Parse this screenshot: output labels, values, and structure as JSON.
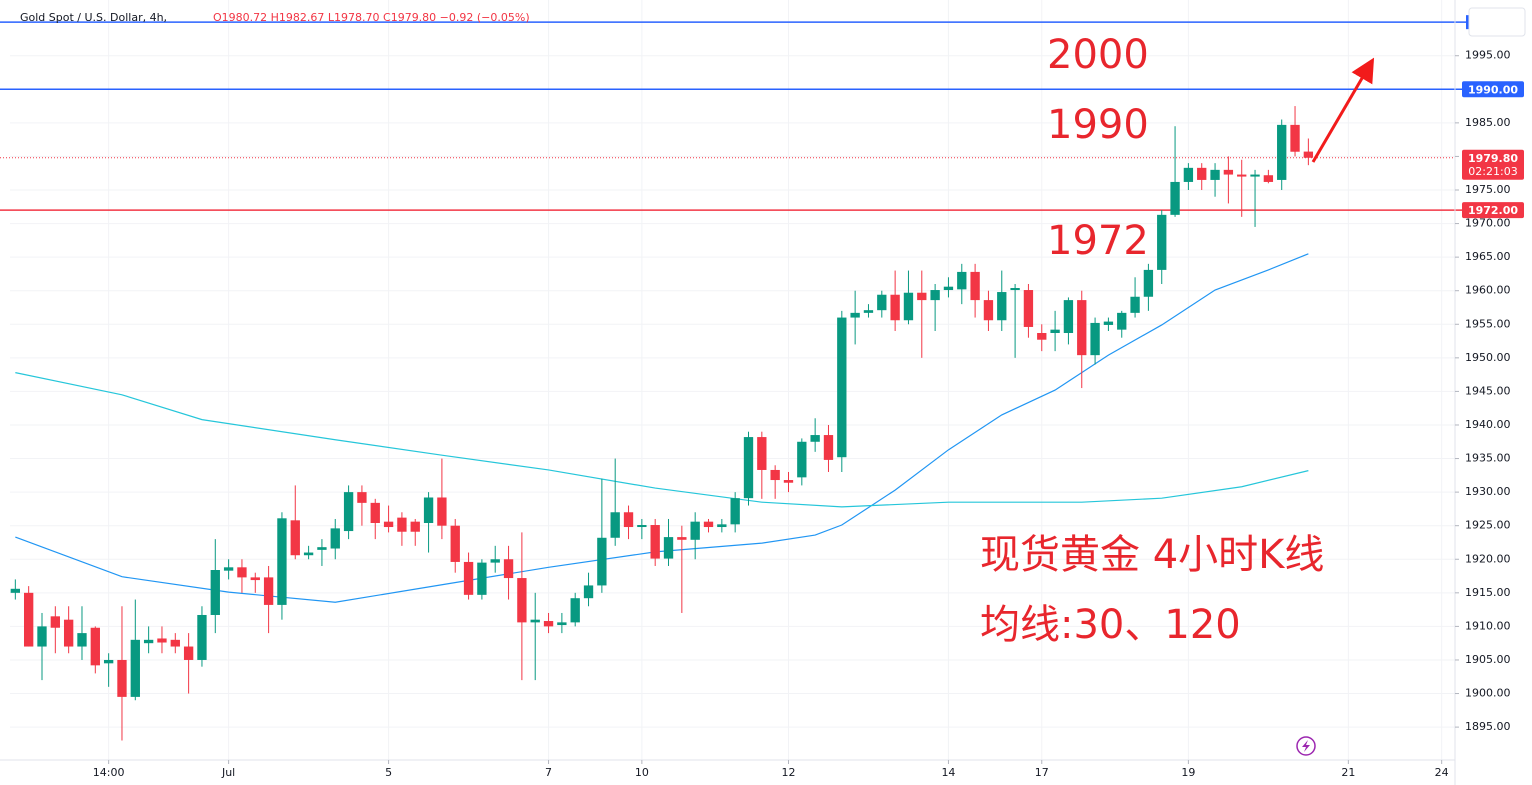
{
  "chart_data": {
    "type": "candlestick",
    "title": "Gold Spot / U.S. Dollar, 4h,",
    "ohlc_legend": "O1980.72 H1982.67 L1978.70 C1979.80 −0.92 (−0.05%)",
    "annotations": [
      "2000",
      "1990",
      "1972",
      "现货黄金 4小时K线",
      "均线:30、120"
    ],
    "up_color": "#089981",
    "down_color": "#f23645",
    "grid": true,
    "xlim": [
      -0.4,
      108
    ],
    "ylim": [
      1890.1,
      2003.3
    ],
    "xticks": [
      {
        "value": 7,
        "label": "14:00"
      },
      {
        "value": 16,
        "label": "Jul"
      },
      {
        "value": 28,
        "label": "5"
      },
      {
        "value": 40,
        "label": "7"
      },
      {
        "value": 47,
        "label": "10"
      },
      {
        "value": 58,
        "label": "12"
      },
      {
        "value": 70,
        "label": "14"
      },
      {
        "value": 77,
        "label": "17"
      },
      {
        "value": 88,
        "label": "19"
      },
      {
        "value": 100,
        "label": "21"
      },
      {
        "value": 107,
        "label": "24"
      }
    ],
    "yticks": [
      {
        "value": 1895,
        "label": "1895.00"
      },
      {
        "value": 1900,
        "label": "1900.00"
      },
      {
        "value": 1905,
        "label": "1905.00"
      },
      {
        "value": 1910,
        "label": "1910.00"
      },
      {
        "value": 1915,
        "label": "1915.00"
      },
      {
        "value": 1920,
        "label": "1920.00"
      },
      {
        "value": 1925,
        "label": "1925.00"
      },
      {
        "value": 1930,
        "label": "1930.00"
      },
      {
        "value": 1935,
        "label": "1935.00"
      },
      {
        "value": 1940,
        "label": "1940.00"
      },
      {
        "value": 1945,
        "label": "1945.00"
      },
      {
        "value": 1950,
        "label": "1950.00"
      },
      {
        "value": 1955,
        "label": "1955.00"
      },
      {
        "value": 1960,
        "label": "1960.00"
      },
      {
        "value": 1965,
        "label": "1965.00"
      },
      {
        "value": 1970,
        "label": "1970.00"
      },
      {
        "value": 1975,
        "label": "1975.00"
      },
      {
        "value": 1980,
        "label": "1980.00"
      },
      {
        "value": 1985,
        "label": "1985.00"
      },
      {
        "value": 1995,
        "label": "1995.00"
      }
    ],
    "levels": [
      {
        "value": 2000,
        "color": "#2962ff"
      },
      {
        "value": 1990,
        "label": "1990.00",
        "color": "#2962ff"
      },
      {
        "value": 1972,
        "label": "1972.00",
        "color": "#f23645"
      }
    ],
    "last_price": {
      "value": 1979.8,
      "label": "1979.80",
      "countdown": "02:21:03",
      "color": "#f23645"
    },
    "candles": {
      "x": [
        0,
        1,
        2,
        3,
        4,
        5,
        6,
        7,
        8,
        9,
        10,
        11,
        12,
        13,
        14,
        15,
        16,
        17,
        18,
        19,
        20,
        21,
        22,
        23,
        24,
        25,
        26,
        27,
        28,
        29,
        30,
        31,
        32,
        33,
        34,
        35,
        36,
        37,
        38,
        39,
        40,
        41,
        42,
        43,
        44,
        45,
        46,
        47,
        48,
        49,
        50,
        51,
        52,
        53,
        54,
        55,
        56,
        57,
        58,
        59,
        60,
        61,
        62,
        63,
        64,
        65,
        66,
        67,
        68,
        69,
        70,
        71,
        72,
        73,
        74,
        75,
        76,
        77,
        78,
        79,
        80,
        81,
        82,
        83,
        84,
        85,
        86,
        87,
        88,
        89,
        90,
        91,
        92,
        93,
        94,
        95,
        96,
        97
      ],
      "open": [
        1915,
        1915,
        1907,
        1911.5,
        1911,
        1907,
        1909.8,
        1904.5,
        1905,
        1899.5,
        1907.5,
        1908.2,
        1908,
        1907,
        1905,
        1911.7,
        1918.3,
        1918.8,
        1917.3,
        1917.3,
        1913.2,
        1925.8,
        1920.6,
        1921.4,
        1921.6,
        1924.2,
        1930,
        1928.4,
        1925.6,
        1926.2,
        1925.6,
        1925.4,
        1929.2,
        1925,
        1919.6,
        1914.7,
        1919.5,
        1920,
        1917.2,
        1910.6,
        1910.8,
        1910.2,
        1910.6,
        1914.2,
        1916.1,
        1923.2,
        1927,
        1924.8,
        1925.1,
        1920.1,
        1923.3,
        1922.9,
        1925.6,
        1924.8,
        1925.2,
        1929.1,
        1938.2,
        1933.3,
        1931.8,
        1932.2,
        1937.5,
        1938.5,
        1935.2,
        1956,
        1956.7,
        1957.1,
        1959.4,
        1955.6,
        1959.7,
        1958.6,
        1960.1,
        1960.2,
        1962.8,
        1958.6,
        1955.6,
        1960.1,
        1960.1,
        1953.7,
        1953.7,
        1953.7,
        1958.6,
        1950.4,
        1954.9,
        1954.2,
        1956.7,
        1959.1,
        1963.1,
        1971.3,
        1976.2,
        1978.3,
        1976.5,
        1978,
        1977.3,
        1977,
        1977.2,
        1976.5,
        1984.7,
        1980.72
      ],
      "high": [
        1917,
        1916,
        1912,
        1913,
        1913,
        1913,
        1910,
        1906,
        1913,
        1914,
        1910,
        1910,
        1909,
        1909,
        1913,
        1923,
        1920,
        1920,
        1918,
        1919,
        1927,
        1931,
        1922,
        1923,
        1926,
        1931,
        1931,
        1929,
        1928,
        1927,
        1926,
        1930,
        1935,
        1926,
        1921,
        1920,
        1922,
        1922,
        1924,
        1915,
        1912,
        1912,
        1915,
        1918,
        1932,
        1935,
        1928,
        1926,
        1926,
        1926,
        1925,
        1927,
        1926,
        1926,
        1930,
        1939,
        1939,
        1934,
        1933,
        1938,
        1941,
        1940,
        1957,
        1960,
        1958,
        1960,
        1963,
        1963,
        1963,
        1961,
        1962,
        1964,
        1964,
        1960,
        1963,
        1961,
        1961,
        1955,
        1957,
        1959,
        1960,
        1956,
        1956,
        1957,
        1962,
        1964,
        1972,
        1984.5,
        1979,
        1979,
        1979,
        1980,
        1979.5,
        1978,
        1978,
        1985.5,
        1987.5,
        1982.67
      ],
      "low": [
        1914,
        1907,
        1902,
        1906,
        1906,
        1905,
        1903,
        1901,
        1893,
        1899,
        1906,
        1906,
        1906,
        1900,
        1904,
        1909,
        1917,
        1915,
        1915,
        1909,
        1911,
        1920,
        1920,
        1919,
        1920,
        1923,
        1925,
        1923,
        1924,
        1922,
        1922,
        1921,
        1923,
        1918,
        1914,
        1914,
        1918,
        1914,
        1902,
        1902,
        1909,
        1909,
        1910,
        1913,
        1915,
        1922,
        1923,
        1923,
        1919,
        1919,
        1912,
        1920,
        1924,
        1924,
        1924,
        1928,
        1929,
        1929,
        1930,
        1931,
        1936,
        1933,
        1933,
        1952,
        1956,
        1956,
        1954,
        1955,
        1950,
        1954,
        1959,
        1958,
        1956,
        1954,
        1954,
        1950,
        1953,
        1951,
        1951,
        1952,
        1945.5,
        1949,
        1954,
        1953,
        1956,
        1957,
        1961,
        1971,
        1975,
        1975,
        1974,
        1973,
        1971,
        1969.5,
        1976,
        1975,
        1980,
        1978.7
      ],
      "close": [
        1915.6,
        1907,
        1910,
        1909.8,
        1907,
        1909,
        1904.2,
        1905,
        1899.5,
        1908,
        1908,
        1907.6,
        1907,
        1905,
        1911.7,
        1918.4,
        1918.8,
        1917.3,
        1916.9,
        1913.2,
        1926.1,
        1920.6,
        1921,
        1921.8,
        1924.6,
        1930,
        1928.4,
        1925.4,
        1924.8,
        1924.1,
        1924.1,
        1929.2,
        1925,
        1919.6,
        1914.7,
        1919.5,
        1920,
        1917.2,
        1910.6,
        1911,
        1910,
        1910.6,
        1914.2,
        1916.1,
        1923.2,
        1927,
        1924.8,
        1925.1,
        1920.1,
        1923.3,
        1922.9,
        1925.6,
        1924.8,
        1925.2,
        1929.1,
        1938.2,
        1933.3,
        1931.8,
        1931.4,
        1937.5,
        1938.5,
        1934.8,
        1956,
        1956.7,
        1957.1,
        1959.4,
        1955.6,
        1959.7,
        1958.6,
        1960.1,
        1960.6,
        1962.8,
        1958.6,
        1955.6,
        1959.8,
        1960.4,
        1954.6,
        1952.7,
        1954.2,
        1958.6,
        1950.4,
        1955.2,
        1955.4,
        1956.7,
        1959.1,
        1963.1,
        1971.3,
        1976.2,
        1978.3,
        1976.5,
        1978,
        1977.3,
        1977,
        1977.3,
        1976.2,
        1984.7,
        1980.7,
        1979.8
      ]
    },
    "moving_averages": [
      {
        "color": "#2196f3",
        "x": [
          0,
          8,
          16,
          24,
          32,
          40,
          48,
          56,
          60,
          62,
          66,
          70,
          74,
          78,
          82,
          86,
          90,
          94,
          97
        ],
        "values": [
          1923.3,
          1917.4,
          1915.1,
          1913.6,
          1916.2,
          1918.8,
          1921.1,
          1922.4,
          1923.6,
          1925.1,
          1930.3,
          1936.3,
          1941.5,
          1945.2,
          1950.4,
          1954.9,
          1960.1,
          1963.1,
          1965.5
        ]
      },
      {
        "color": "#26c6da",
        "x": [
          0,
          8,
          14,
          24,
          32,
          40,
          48,
          56,
          62,
          70,
          80,
          86,
          92,
          97
        ],
        "values": [
          1947.8,
          1944.5,
          1940.8,
          1937.8,
          1935.5,
          1933.3,
          1930.6,
          1928.5,
          1927.8,
          1928.5,
          1928.5,
          1929.1,
          1930.8,
          1933.2
        ]
      }
    ]
  }
}
